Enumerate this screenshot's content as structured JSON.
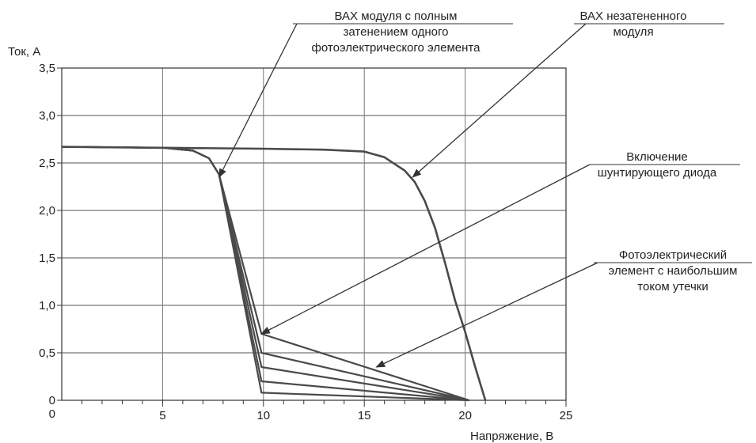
{
  "chart_data": {
    "type": "line",
    "ylabel": "Ток, А",
    "xlabel": "Напряжение, В",
    "xlim": [
      0,
      25
    ],
    "ylim": [
      0,
      3.5
    ],
    "x_ticks": [
      5,
      10,
      15,
      20,
      25
    ],
    "x_tick_labels": [
      "5",
      "10",
      "15",
      "20",
      "25"
    ],
    "x_minor_ticks": [
      1,
      2,
      3,
      4,
      6,
      7,
      8,
      9,
      11,
      12,
      13,
      14,
      16,
      17,
      18,
      19,
      21,
      22,
      23,
      24
    ],
    "y_ticks": [
      0,
      0.5,
      1.0,
      1.5,
      2.0,
      2.5,
      3.0,
      3.5
    ],
    "y_tick_labels": [
      "0",
      "0,5",
      "1,0",
      "1,5",
      "2,0",
      "2,5",
      "3,0",
      "3,5"
    ],
    "grid": true,
    "series": [
      {
        "id": "unshaded",
        "points": [
          [
            0,
            2.67
          ],
          [
            5,
            2.66
          ],
          [
            10,
            2.65
          ],
          [
            13,
            2.64
          ],
          [
            15,
            2.62
          ],
          [
            16,
            2.56
          ],
          [
            17,
            2.42
          ],
          [
            17.5,
            2.3
          ],
          [
            18,
            2.1
          ],
          [
            18.5,
            1.82
          ],
          [
            19,
            1.45
          ],
          [
            19.5,
            1.05
          ],
          [
            20,
            0.72
          ],
          [
            20.5,
            0.35
          ],
          [
            21,
            0.0
          ]
        ]
      },
      {
        "id": "shaded-1",
        "points": [
          [
            0,
            2.67
          ],
          [
            5,
            2.66
          ],
          [
            6.5,
            2.63
          ],
          [
            7.3,
            2.55
          ],
          [
            7.8,
            2.38
          ],
          [
            9.9,
            0.7
          ],
          [
            20.2,
            0.0
          ]
        ]
      },
      {
        "id": "shaded-2",
        "points": [
          [
            0,
            2.67
          ],
          [
            5,
            2.66
          ],
          [
            6.5,
            2.63
          ],
          [
            7.3,
            2.55
          ],
          [
            7.8,
            2.38
          ],
          [
            9.9,
            0.5
          ],
          [
            20.2,
            0.0
          ]
        ]
      },
      {
        "id": "shaded-3",
        "points": [
          [
            0,
            2.67
          ],
          [
            5,
            2.66
          ],
          [
            6.5,
            2.63
          ],
          [
            7.3,
            2.55
          ],
          [
            7.8,
            2.38
          ],
          [
            9.9,
            0.35
          ],
          [
            20.2,
            0.0
          ]
        ]
      },
      {
        "id": "shaded-4",
        "points": [
          [
            0,
            2.67
          ],
          [
            5,
            2.66
          ],
          [
            6.5,
            2.63
          ],
          [
            7.3,
            2.55
          ],
          [
            7.8,
            2.38
          ],
          [
            9.9,
            0.2
          ],
          [
            20.2,
            0.0
          ]
        ]
      },
      {
        "id": "shaded-5",
        "points": [
          [
            0,
            2.67
          ],
          [
            5,
            2.66
          ],
          [
            6.5,
            2.63
          ],
          [
            7.3,
            2.55
          ],
          [
            7.8,
            2.38
          ],
          [
            9.9,
            0.08
          ],
          [
            20.2,
            0.0
          ]
        ]
      }
    ],
    "annotations": [
      {
        "id": "shaded-module",
        "lines": [
          "ВАХ модуля с полным",
          "затенением одного",
          "фотоэлектрического элемента"
        ],
        "target": [
          7.8,
          2.35
        ]
      },
      {
        "id": "unshaded-module",
        "lines": [
          "ВАХ незатененного",
          "модуля"
        ],
        "target": [
          17.4,
          2.35
        ]
      },
      {
        "id": "bypass-diode",
        "lines": [
          "Включение",
          "шунтирующего диода"
        ],
        "target": [
          9.9,
          0.7
        ]
      },
      {
        "id": "leakage-cell",
        "lines": [
          "Фотоэлектрический",
          "элемент с наибольшим",
          "током утечки"
        ],
        "target": [
          15.6,
          0.35
        ]
      }
    ]
  }
}
